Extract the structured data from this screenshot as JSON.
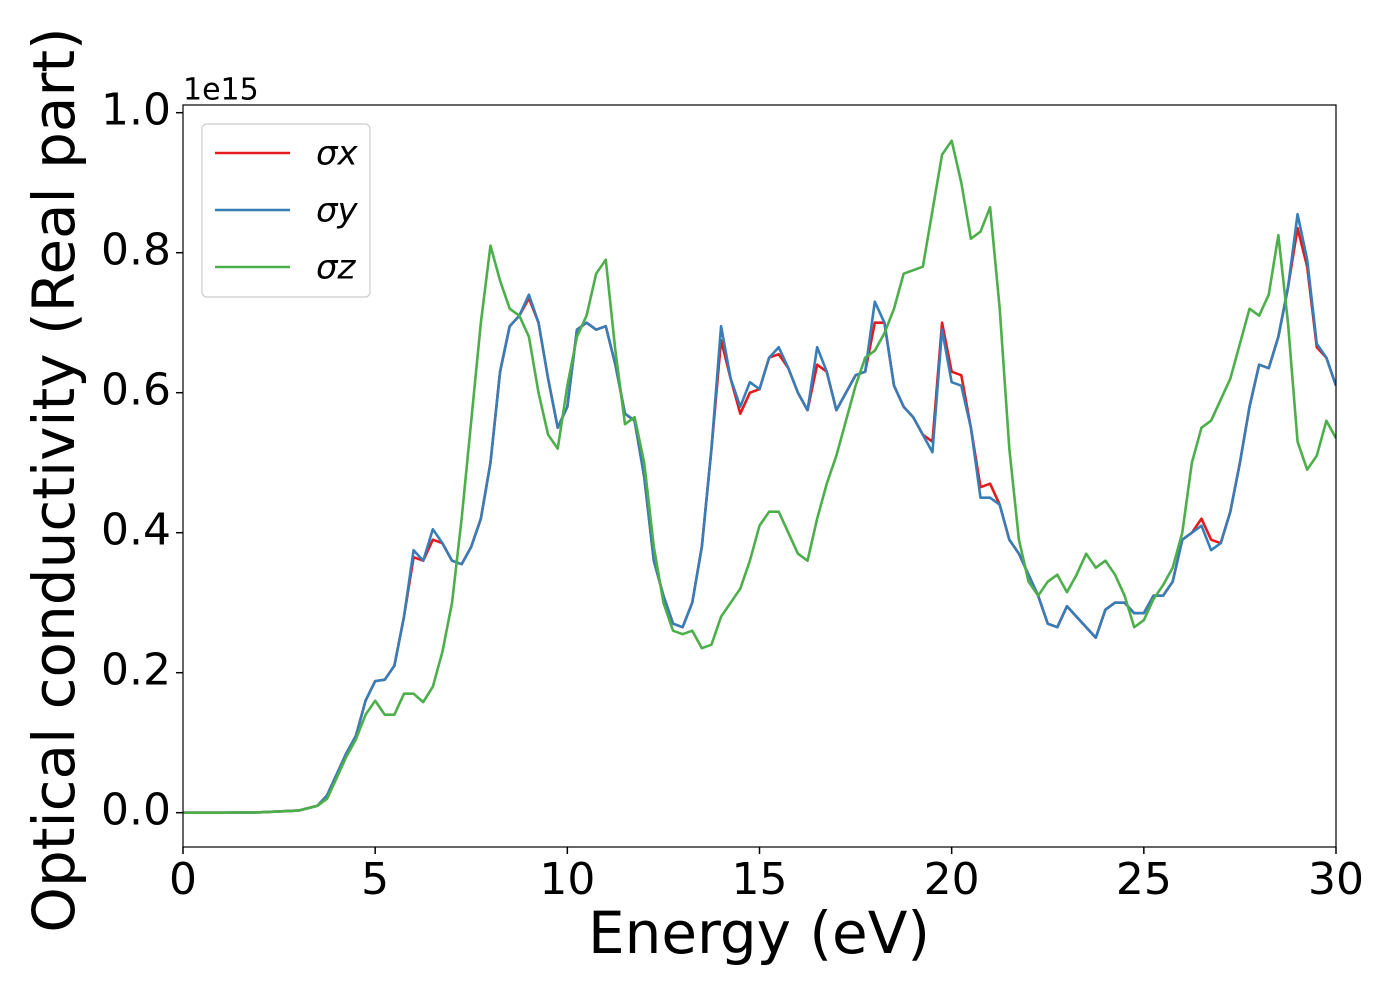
{
  "chart_data": {
    "type": "line",
    "xlabel": "Energy (eV)",
    "ylabel": "Optical conductivity (Real part)",
    "y_offset_label": "1e15",
    "legend": "upper left",
    "xlim": [
      0,
      30
    ],
    "xticks": [
      0,
      5,
      10,
      15,
      20,
      25,
      30
    ],
    "ylim": [
      -0.049,
      1.011
    ],
    "yticks": [
      {
        "value": 0,
        "label": "0.0"
      },
      0.2,
      0.4,
      0.6,
      0.8,
      {
        "value": 1,
        "label": "1.0"
      }
    ],
    "x": [
      0,
      1,
      2,
      3,
      3.5,
      3.75,
      4,
      4.25,
      4.5,
      4.75,
      5,
      5.25,
      5.5,
      5.75,
      6,
      6.25,
      6.5,
      6.75,
      7,
      7.25,
      7.5,
      7.75,
      8,
      8.25,
      8.5,
      8.75,
      9,
      9.25,
      9.5,
      9.75,
      10,
      10.25,
      10.5,
      10.75,
      11,
      11.25,
      11.5,
      11.75,
      12,
      12.25,
      12.5,
      12.75,
      13,
      13.25,
      13.5,
      13.75,
      14,
      14.25,
      14.5,
      14.75,
      15,
      15.25,
      15.5,
      15.75,
      16,
      16.25,
      16.5,
      16.75,
      17,
      17.25,
      17.5,
      17.75,
      18,
      18.25,
      18.5,
      18.75,
      19,
      19.25,
      19.5,
      19.75,
      20,
      20.25,
      20.5,
      20.75,
      21,
      21.25,
      21.5,
      21.75,
      22,
      22.25,
      22.5,
      22.75,
      23,
      23.25,
      23.5,
      23.75,
      24,
      24.25,
      24.5,
      24.75,
      25,
      25.25,
      25.5,
      25.75,
      26,
      26.25,
      26.5,
      26.75,
      27,
      27.25,
      27.5,
      27.75,
      28,
      28.25,
      28.5,
      28.75,
      29,
      29.25,
      29.5,
      29.75,
      30
    ],
    "series": [
      {
        "name": "σx",
        "color": "#e41a1c",
        "values": [
          0,
          0,
          0.0005,
          0.003,
          0.01,
          0.025,
          0.055,
          0.085,
          0.11,
          0.16,
          0.188,
          0.19,
          0.21,
          0.28,
          0.365,
          0.36,
          0.39,
          0.385,
          0.36,
          0.355,
          0.38,
          0.42,
          0.5,
          0.63,
          0.695,
          0.71,
          0.735,
          0.7,
          0.62,
          0.55,
          0.58,
          0.69,
          0.7,
          0.69,
          0.695,
          0.64,
          0.57,
          0.56,
          0.48,
          0.36,
          0.31,
          0.27,
          0.265,
          0.3,
          0.38,
          0.52,
          0.675,
          0.62,
          0.57,
          0.6,
          0.605,
          0.65,
          0.655,
          0.635,
          0.6,
          0.575,
          0.64,
          0.63,
          0.575,
          0.6,
          0.625,
          0.63,
          0.7,
          0.7,
          0.61,
          0.58,
          0.565,
          0.54,
          0.53,
          0.7,
          0.63,
          0.625,
          0.55,
          0.465,
          0.47,
          0.44,
          0.39,
          0.37,
          0.34,
          0.31,
          0.27,
          0.265,
          0.295,
          0.28,
          0.265,
          0.25,
          0.29,
          0.3,
          0.3,
          0.285,
          0.285,
          0.31,
          0.31,
          0.33,
          0.39,
          0.4,
          0.42,
          0.39,
          0.385,
          0.43,
          0.5,
          0.58,
          0.64,
          0.635,
          0.68,
          0.75,
          0.835,
          0.78,
          0.665,
          0.65,
          0.61
        ]
      },
      {
        "name": "σy",
        "color": "#377eb8",
        "values": [
          0,
          0,
          0.0005,
          0.003,
          0.01,
          0.025,
          0.055,
          0.085,
          0.11,
          0.16,
          0.188,
          0.19,
          0.21,
          0.28,
          0.375,
          0.36,
          0.405,
          0.385,
          0.36,
          0.355,
          0.38,
          0.42,
          0.5,
          0.63,
          0.695,
          0.71,
          0.74,
          0.7,
          0.62,
          0.55,
          0.58,
          0.69,
          0.7,
          0.69,
          0.695,
          0.64,
          0.57,
          0.56,
          0.48,
          0.36,
          0.31,
          0.27,
          0.265,
          0.3,
          0.38,
          0.52,
          0.695,
          0.62,
          0.58,
          0.615,
          0.605,
          0.65,
          0.665,
          0.635,
          0.6,
          0.575,
          0.665,
          0.63,
          0.575,
          0.6,
          0.625,
          0.63,
          0.73,
          0.7,
          0.61,
          0.58,
          0.565,
          0.54,
          0.515,
          0.69,
          0.615,
          0.61,
          0.55,
          0.45,
          0.45,
          0.44,
          0.39,
          0.37,
          0.34,
          0.31,
          0.27,
          0.265,
          0.295,
          0.28,
          0.265,
          0.25,
          0.29,
          0.3,
          0.3,
          0.285,
          0.285,
          0.31,
          0.31,
          0.33,
          0.39,
          0.4,
          0.41,
          0.375,
          0.385,
          0.43,
          0.5,
          0.58,
          0.64,
          0.635,
          0.68,
          0.75,
          0.855,
          0.79,
          0.67,
          0.65,
          0.61
        ]
      },
      {
        "name": "σz",
        "color": "#4daf4a",
        "values": [
          0,
          0,
          0.0005,
          0.003,
          0.01,
          0.02,
          0.05,
          0.08,
          0.105,
          0.14,
          0.16,
          0.14,
          0.14,
          0.17,
          0.17,
          0.158,
          0.18,
          0.23,
          0.3,
          0.42,
          0.56,
          0.7,
          0.81,
          0.76,
          0.72,
          0.71,
          0.68,
          0.6,
          0.54,
          0.52,
          0.61,
          0.68,
          0.71,
          0.77,
          0.79,
          0.66,
          0.555,
          0.565,
          0.5,
          0.38,
          0.3,
          0.26,
          0.255,
          0.26,
          0.235,
          0.24,
          0.28,
          0.3,
          0.32,
          0.36,
          0.41,
          0.43,
          0.43,
          0.4,
          0.37,
          0.36,
          0.42,
          0.47,
          0.51,
          0.56,
          0.61,
          0.65,
          0.66,
          0.685,
          0.72,
          0.77,
          0.775,
          0.78,
          0.86,
          0.94,
          0.96,
          0.9,
          0.82,
          0.83,
          0.865,
          0.72,
          0.52,
          0.39,
          0.33,
          0.31,
          0.33,
          0.34,
          0.315,
          0.34,
          0.37,
          0.35,
          0.36,
          0.34,
          0.31,
          0.265,
          0.275,
          0.305,
          0.325,
          0.35,
          0.4,
          0.5,
          0.55,
          0.56,
          0.59,
          0.62,
          0.67,
          0.72,
          0.71,
          0.74,
          0.825,
          0.7,
          0.53,
          0.49,
          0.51,
          0.56,
          0.535
        ]
      }
    ]
  }
}
